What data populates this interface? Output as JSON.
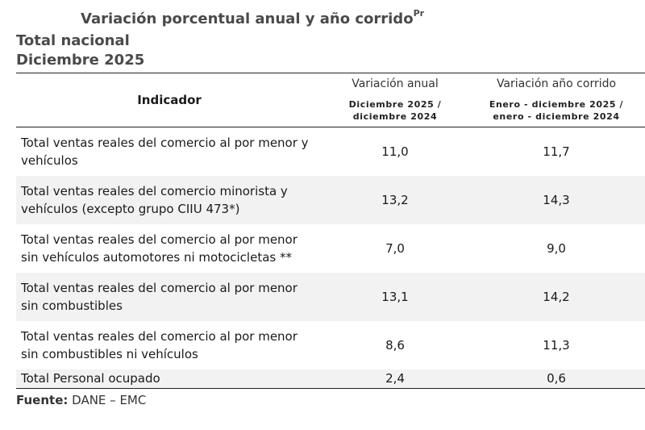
{
  "header": {
    "title": "Variación porcentual anual y año corrido",
    "title_superscript": "Pr",
    "subtitle_line1": "Total nacional",
    "subtitle_line2": "Diciembre 2025"
  },
  "table": {
    "col_indicator": "Indicador",
    "col_annual": "Variación anual",
    "col_annual_period_line1": "Diciembre 2025 /",
    "col_annual_period_line2": "diciembre 2024",
    "col_ytd": "Variación año corrido",
    "col_ytd_period_line1": "Enero - diciembre 2025 /",
    "col_ytd_period_line2": "enero - diciembre 2024",
    "rows": [
      {
        "line1": "Total ventas reales del comercio al por menor y",
        "line2": "vehículos",
        "annual": "11,0",
        "ytd": "11,7"
      },
      {
        "line1": "Total ventas reales del comercio minorista y",
        "line2": "vehículos (excepto grupo CIIU 473*)",
        "annual": "13,2",
        "ytd": "14,3"
      },
      {
        "line1": "Total ventas reales del comercio al por menor",
        "line2": "sin vehículos automotores ni motocicletas **",
        "annual": "7,0",
        "ytd": "9,0"
      },
      {
        "line1": "Total ventas reales del comercio al por menor",
        "line2": "sin combustibles",
        "annual": "13,1",
        "ytd": "14,2"
      },
      {
        "line1": "Total ventas reales del comercio al por menor",
        "line2": "sin combustibles ni vehículos",
        "annual": "8,6",
        "ytd": "11,3"
      },
      {
        "line1": "Total Personal ocupado",
        "line2": "",
        "annual": "2,4",
        "ytd": "0,6"
      }
    ]
  },
  "footer": {
    "source_label": "Fuente:",
    "source_value": "DANE – EMC"
  }
}
